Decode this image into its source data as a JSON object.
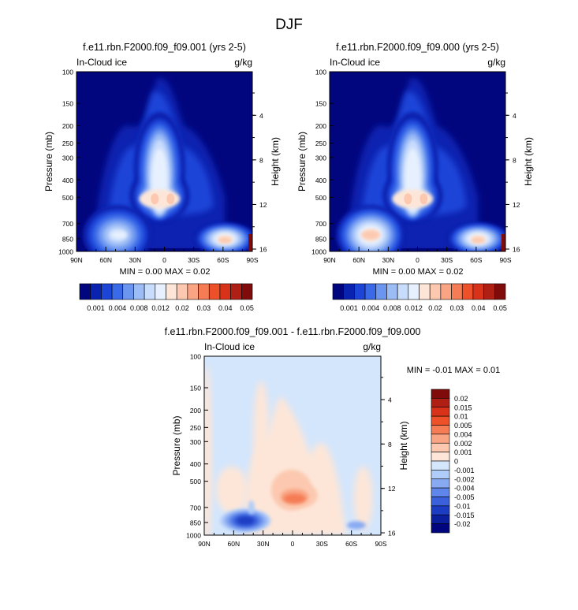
{
  "page": {
    "title": "DJF"
  },
  "colorbar_top": {
    "labels": [
      "0.001",
      "0.004",
      "0.008",
      "0.012",
      "0.02",
      "0.03",
      "0.04",
      "0.05"
    ],
    "colors": [
      "#02067e",
      "#0a22b0",
      "#1c45d8",
      "#3a6ae8",
      "#6c95f0",
      "#9cbcf6",
      "#c8dcfc",
      "#e6f0fe",
      "#fde6d8",
      "#fcc9b0",
      "#f9a584",
      "#f57c55",
      "#ee5129",
      "#d8321a",
      "#b01f14",
      "#800b0b"
    ]
  },
  "colorbar_diff": {
    "labels": [
      "0.02",
      "0.015",
      "0.01",
      "0.005",
      "0.004",
      "0.002",
      "0.001",
      "0",
      "-0.001",
      "-0.002",
      "-0.004",
      "-0.005",
      "-0.01",
      "-0.015",
      "-0.02"
    ],
    "colors": [
      "#800b0b",
      "#b01f14",
      "#d8321a",
      "#ee5129",
      "#f57c55",
      "#f9a584",
      "#fcc9b0",
      "#fde6d8",
      "#d4e6fc",
      "#b0ccf8",
      "#88aaf2",
      "#5f86ea",
      "#3a60dc",
      "#1c3cc4",
      "#0a1e9e",
      "#02067e"
    ]
  },
  "chart_data": [
    {
      "type": "heatmap",
      "title": "f.e11.rbn.F2000.f09_f09.001 (yrs 2-5)",
      "variable_label": "In-Cloud ice",
      "units": "g/kg",
      "xlabel": "",
      "ylabel": "Pressure (mb)",
      "ylabel_right": "Height (km)",
      "x_ticks": [
        "90N",
        "60N",
        "30N",
        "0",
        "30S",
        "60S",
        "90S"
      ],
      "y_ticks": [
        "100",
        "150",
        "200",
        "250",
        "300",
        "400",
        "500",
        "700",
        "850",
        "1000"
      ],
      "y_ticks_right": [
        "16",
        "12",
        "8",
        "4"
      ],
      "ylim": [
        1000,
        100
      ],
      "stats": "MIN =   0.00  MAX =   0.02",
      "features": [
        {
          "lat": 5,
          "p": 500,
          "value": 0.02
        },
        {
          "lat": -60,
          "p": 850,
          "value": 0.02
        },
        {
          "lat": 48,
          "p": 800,
          "value": 0.012
        }
      ]
    },
    {
      "type": "heatmap",
      "title": "f.e11.rbn.F2000.f09_f09.000 (yrs 2-5)",
      "variable_label": "In-Cloud ice",
      "units": "g/kg",
      "xlabel": "",
      "ylabel": "Pressure (mb)",
      "ylabel_right": "Height (km)",
      "x_ticks": [
        "90N",
        "60N",
        "30N",
        "0",
        "30S",
        "60S",
        "90S"
      ],
      "y_ticks": [
        "100",
        "150",
        "200",
        "250",
        "300",
        "400",
        "500",
        "700",
        "850",
        "1000"
      ],
      "y_ticks_right": [
        "16",
        "12",
        "8",
        "4"
      ],
      "ylim": [
        1000,
        100
      ],
      "stats": "MIN =   0.00  MAX =   0.02",
      "features": [
        {
          "lat": 5,
          "p": 500,
          "value": 0.02
        },
        {
          "lat": -60,
          "p": 850,
          "value": 0.02
        },
        {
          "lat": 48,
          "p": 820,
          "value": 0.02
        }
      ]
    },
    {
      "type": "heatmap",
      "title": "f.e11.rbn.F2000.f09_f09.001 - f.e11.rbn.F2000.f09_f09.000",
      "variable_label": "In-Cloud ice",
      "units": "g/kg",
      "xlabel": "",
      "ylabel": "Pressure (mb)",
      "ylabel_right": "Height (km)",
      "x_ticks": [
        "90N",
        "60N",
        "30N",
        "0",
        "30S",
        "60S",
        "90S"
      ],
      "y_ticks": [
        "100",
        "150",
        "200",
        "250",
        "300",
        "400",
        "500",
        "700",
        "850",
        "1000"
      ],
      "y_ticks_right": [
        "16",
        "12",
        "8",
        "4"
      ],
      "ylim": [
        1000,
        100
      ],
      "stats": "MIN = -0.01  MAX =  0.01",
      "features": [
        {
          "lat": 0,
          "p": 600,
          "value": 0.004
        },
        {
          "lat": 48,
          "p": 820,
          "value": -0.01
        },
        {
          "lat": -65,
          "p": 870,
          "value": -0.002
        }
      ]
    }
  ]
}
